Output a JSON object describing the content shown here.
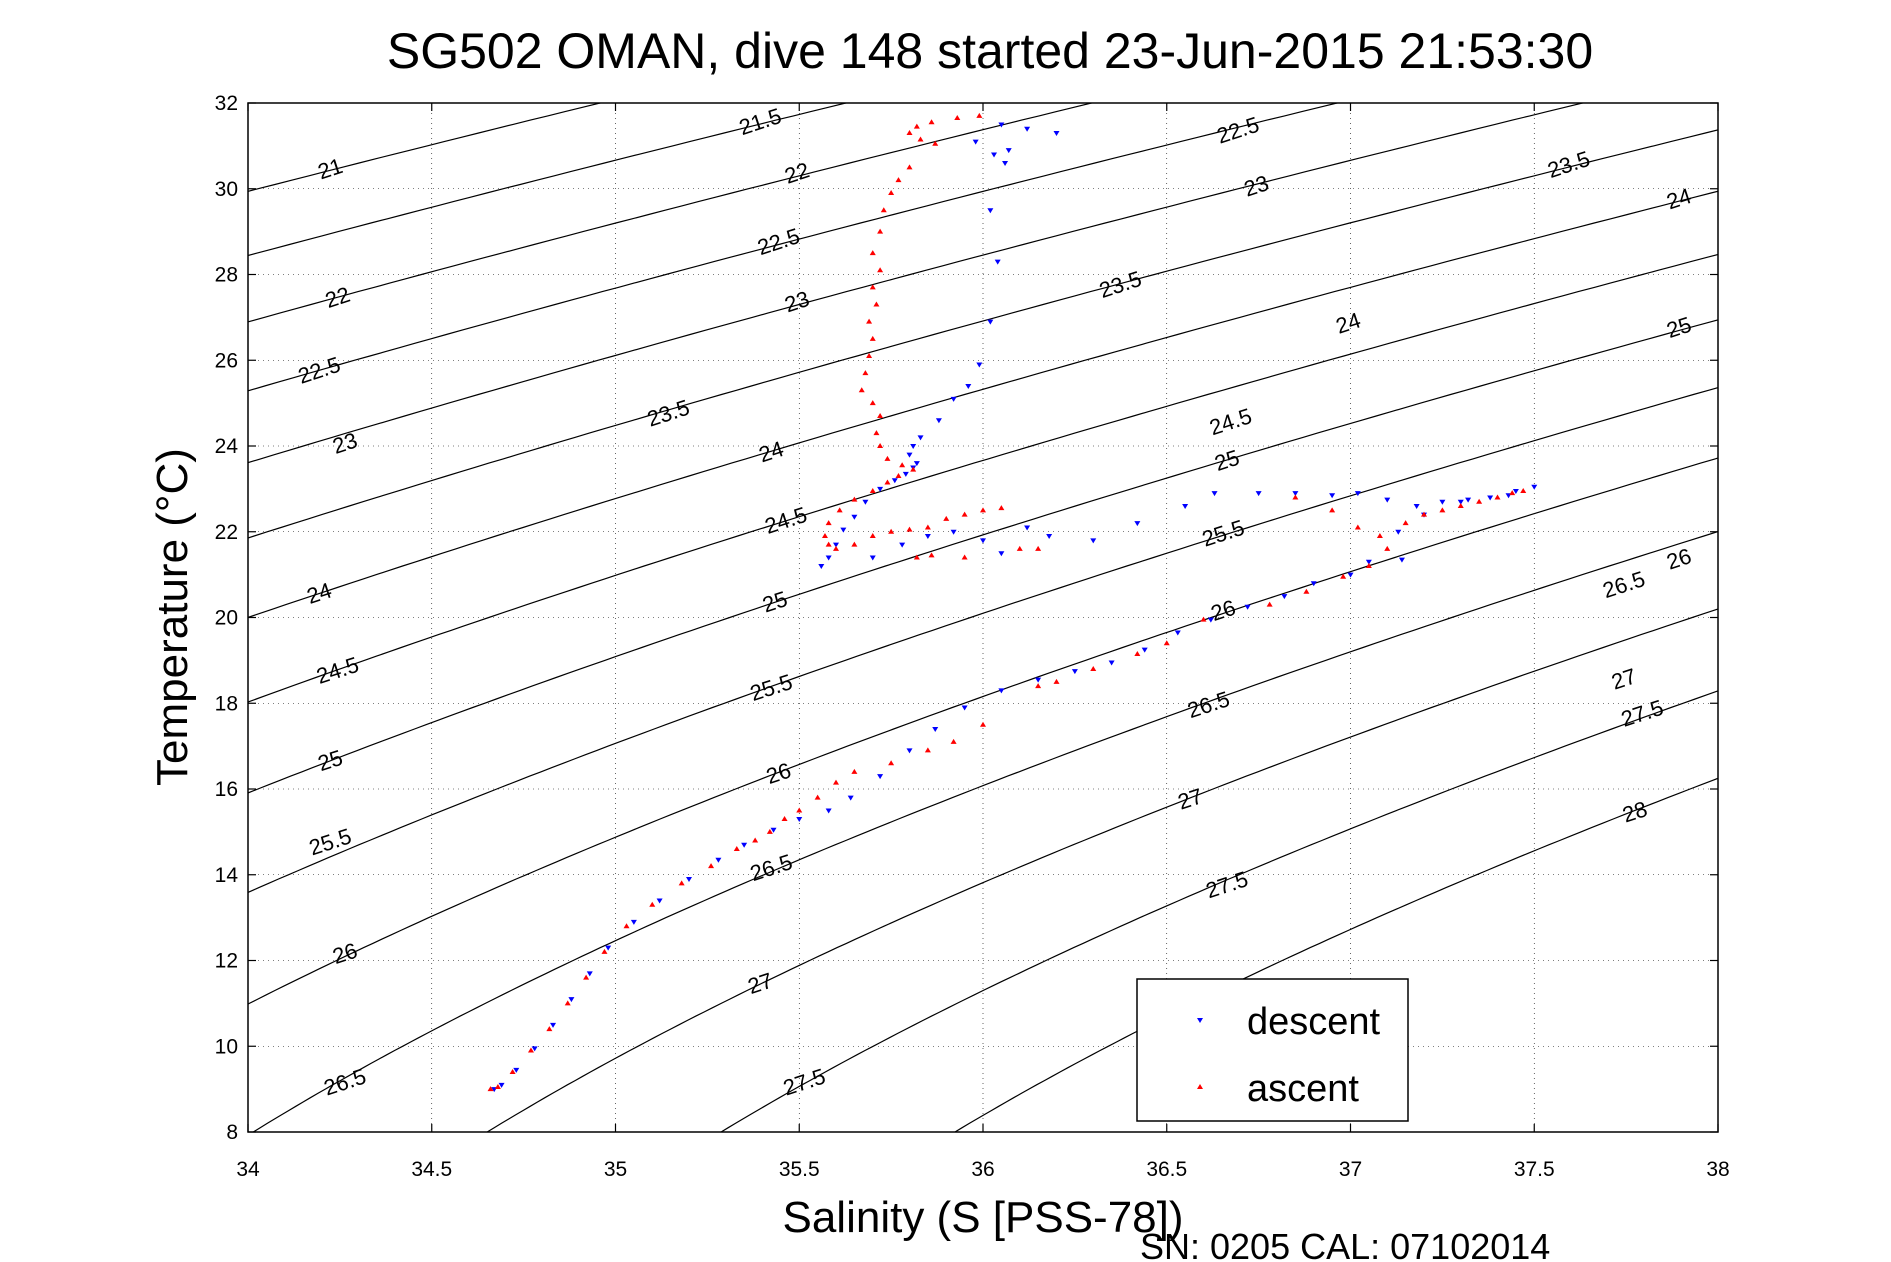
{
  "chart_data": {
    "type": "scatter",
    "title": "SG502 OMAN, dive 148 started 23-Jun-2015 21:53:30",
    "xlabel": "Salinity (S [PSS-78])",
    "ylabel": "Temperature (°C)",
    "xlim": [
      34,
      38
    ],
    "ylim": [
      8,
      32
    ],
    "x_ticks": [
      "34",
      "34.5",
      "35",
      "35.5",
      "36",
      "36.5",
      "37",
      "37.5",
      "38"
    ],
    "y_ticks": [
      "8",
      "10",
      "12",
      "14",
      "16",
      "18",
      "20",
      "22",
      "24",
      "26",
      "28",
      "30",
      "32"
    ],
    "grid": "dotted",
    "legend_position": "bottom-right",
    "density_contours": {
      "levels": [
        21,
        21.5,
        22,
        22.5,
        23,
        23.5,
        24,
        24.5,
        25,
        25.5,
        26,
        26.5,
        27,
        27.5,
        28
      ],
      "color": "#000000",
      "labels": [
        {
          "text": "21",
          "s": 34.23,
          "t": 30.3
        },
        {
          "text": "21.5",
          "s": 35.4,
          "t": 31.4
        },
        {
          "text": "22",
          "s": 35.5,
          "t": 30.2
        },
        {
          "text": "22.5",
          "s": 36.7,
          "t": 31.2
        },
        {
          "text": "22",
          "s": 34.25,
          "t": 27.3
        },
        {
          "text": "22.5",
          "s": 35.45,
          "t": 28.6
        },
        {
          "text": "23",
          "s": 36.75,
          "t": 29.9
        },
        {
          "text": "23.5",
          "s": 37.6,
          "t": 30.4
        },
        {
          "text": "24",
          "s": 37.9,
          "t": 29.6
        },
        {
          "text": "22.5",
          "s": 34.2,
          "t": 25.6
        },
        {
          "text": "23",
          "s": 35.5,
          "t": 27.2
        },
        {
          "text": "23.5",
          "s": 36.38,
          "t": 27.6
        },
        {
          "text": "24",
          "s": 37.0,
          "t": 26.7
        },
        {
          "text": "25",
          "s": 37.9,
          "t": 26.6
        },
        {
          "text": "23",
          "s": 34.27,
          "t": 23.9
        },
        {
          "text": "23.5",
          "s": 35.15,
          "t": 24.6
        },
        {
          "text": "24.5",
          "s": 36.68,
          "t": 24.4
        },
        {
          "text": "24",
          "s": 35.43,
          "t": 23.7
        },
        {
          "text": "25",
          "s": 36.67,
          "t": 23.5
        },
        {
          "text": "24.5",
          "s": 35.47,
          "t": 22.1
        },
        {
          "text": "25.5",
          "s": 36.66,
          "t": 21.8
        },
        {
          "text": "24",
          "s": 34.2,
          "t": 20.4
        },
        {
          "text": "25",
          "s": 35.44,
          "t": 20.2
        },
        {
          "text": "26",
          "s": 37.9,
          "t": 21.2
        },
        {
          "text": "26",
          "s": 36.66,
          "t": 20.0
        },
        {
          "text": "26.5",
          "s": 37.75,
          "t": 20.6
        },
        {
          "text": "24.5",
          "s": 34.25,
          "t": 18.6
        },
        {
          "text": "25.5",
          "s": 35.43,
          "t": 18.2
        },
        {
          "text": "26.5",
          "s": 36.62,
          "t": 17.8
        },
        {
          "text": "27",
          "s": 37.75,
          "t": 18.4
        },
        {
          "text": "27.5",
          "s": 37.8,
          "t": 17.6
        },
        {
          "text": "25",
          "s": 34.23,
          "t": 16.5
        },
        {
          "text": "26",
          "s": 35.45,
          "t": 16.2
        },
        {
          "text": "27",
          "s": 36.57,
          "t": 15.6
        },
        {
          "text": "28",
          "s": 37.78,
          "t": 15.3
        },
        {
          "text": "25.5",
          "s": 34.23,
          "t": 14.6
        },
        {
          "text": "26.5",
          "s": 35.43,
          "t": 14.0
        },
        {
          "text": "27.5",
          "s": 36.67,
          "t": 13.6
        },
        {
          "text": "26",
          "s": 34.27,
          "t": 12.0
        },
        {
          "text": "27",
          "s": 35.4,
          "t": 11.3
        },
        {
          "text": "26.5",
          "s": 34.27,
          "t": 9.0
        },
        {
          "text": "27.5",
          "s": 35.52,
          "t": 9.0
        }
      ]
    },
    "series": [
      {
        "name": "descent",
        "color": "#0000ff",
        "marker": "triangle-down",
        "points": [
          [
            36.05,
            31.5
          ],
          [
            36.12,
            31.4
          ],
          [
            36.2,
            31.3
          ],
          [
            35.98,
            31.1
          ],
          [
            36.07,
            30.9
          ],
          [
            36.03,
            30.8
          ],
          [
            36.06,
            30.6
          ],
          [
            36.02,
            29.5
          ],
          [
            36.04,
            28.3
          ],
          [
            36.02,
            26.9
          ],
          [
            35.99,
            25.9
          ],
          [
            35.96,
            25.4
          ],
          [
            35.92,
            25.1
          ],
          [
            35.88,
            24.6
          ],
          [
            35.83,
            24.2
          ],
          [
            35.81,
            24.0
          ],
          [
            35.8,
            23.8
          ],
          [
            35.82,
            23.6
          ],
          [
            35.81,
            23.5
          ],
          [
            35.79,
            23.35
          ],
          [
            35.76,
            23.2
          ],
          [
            35.72,
            23.0
          ],
          [
            35.68,
            22.7
          ],
          [
            35.65,
            22.35
          ],
          [
            35.62,
            22.05
          ],
          [
            35.6,
            21.7
          ],
          [
            35.58,
            21.4
          ],
          [
            35.56,
            21.2
          ],
          [
            35.7,
            21.4
          ],
          [
            35.78,
            21.7
          ],
          [
            35.85,
            21.9
          ],
          [
            35.92,
            22.0
          ],
          [
            36.0,
            21.8
          ],
          [
            36.05,
            21.5
          ],
          [
            36.12,
            22.1
          ],
          [
            36.18,
            21.9
          ],
          [
            36.3,
            21.8
          ],
          [
            36.42,
            22.2
          ],
          [
            36.55,
            22.6
          ],
          [
            36.63,
            22.9
          ],
          [
            36.75,
            22.9
          ],
          [
            36.85,
            22.9
          ],
          [
            36.95,
            22.85
          ],
          [
            37.02,
            22.9
          ],
          [
            37.1,
            22.75
          ],
          [
            37.18,
            22.6
          ],
          [
            37.25,
            22.7
          ],
          [
            37.32,
            22.75
          ],
          [
            37.38,
            22.8
          ],
          [
            37.45,
            22.95
          ],
          [
            37.5,
            23.05
          ],
          [
            37.43,
            22.85
          ],
          [
            37.3,
            22.7
          ],
          [
            37.2,
            22.4
          ],
          [
            37.13,
            22.0
          ],
          [
            37.14,
            21.35
          ],
          [
            37.05,
            21.3
          ],
          [
            37.0,
            21.0
          ],
          [
            36.9,
            20.8
          ],
          [
            36.82,
            20.5
          ],
          [
            36.72,
            20.25
          ],
          [
            36.62,
            19.95
          ],
          [
            36.53,
            19.65
          ],
          [
            36.44,
            19.25
          ],
          [
            36.35,
            18.95
          ],
          [
            36.25,
            18.75
          ],
          [
            36.15,
            18.55
          ],
          [
            36.05,
            18.3
          ],
          [
            35.95,
            17.9
          ],
          [
            35.87,
            17.4
          ],
          [
            35.8,
            16.9
          ],
          [
            35.72,
            16.3
          ],
          [
            35.64,
            15.8
          ],
          [
            35.58,
            15.5
          ],
          [
            35.5,
            15.3
          ],
          [
            35.43,
            15.05
          ],
          [
            35.35,
            14.7
          ],
          [
            35.28,
            14.35
          ],
          [
            35.2,
            13.9
          ],
          [
            35.12,
            13.4
          ],
          [
            35.05,
            12.9
          ],
          [
            34.98,
            12.3
          ],
          [
            34.93,
            11.7
          ],
          [
            34.88,
            11.1
          ],
          [
            34.83,
            10.5
          ],
          [
            34.78,
            9.95
          ],
          [
            34.73,
            9.45
          ],
          [
            34.69,
            9.1
          ],
          [
            34.67,
            9.0
          ]
        ]
      },
      {
        "name": "ascent",
        "color": "#ff0000",
        "marker": "triangle-up",
        "points": [
          [
            35.99,
            31.7
          ],
          [
            35.93,
            31.65
          ],
          [
            35.86,
            31.55
          ],
          [
            35.82,
            31.45
          ],
          [
            35.8,
            31.3
          ],
          [
            35.83,
            31.15
          ],
          [
            35.87,
            31.05
          ],
          [
            35.8,
            30.5
          ],
          [
            35.77,
            30.2
          ],
          [
            35.75,
            29.9
          ],
          [
            35.73,
            29.5
          ],
          [
            35.72,
            29.0
          ],
          [
            35.7,
            28.5
          ],
          [
            35.72,
            28.1
          ],
          [
            35.7,
            27.7
          ],
          [
            35.71,
            27.3
          ],
          [
            35.69,
            26.9
          ],
          [
            35.7,
            26.5
          ],
          [
            35.69,
            26.1
          ],
          [
            35.68,
            25.7
          ],
          [
            35.67,
            25.3
          ],
          [
            35.7,
            25.0
          ],
          [
            35.72,
            24.7
          ],
          [
            35.71,
            24.3
          ],
          [
            35.72,
            24.0
          ],
          [
            35.74,
            23.7
          ],
          [
            35.78,
            23.55
          ],
          [
            35.81,
            23.45
          ],
          [
            35.77,
            23.3
          ],
          [
            35.74,
            23.15
          ],
          [
            35.7,
            22.95
          ],
          [
            35.65,
            22.75
          ],
          [
            35.61,
            22.5
          ],
          [
            35.58,
            22.2
          ],
          [
            35.57,
            21.9
          ],
          [
            35.58,
            21.7
          ],
          [
            35.6,
            21.6
          ],
          [
            35.65,
            21.7
          ],
          [
            35.7,
            21.9
          ],
          [
            35.75,
            22.0
          ],
          [
            35.8,
            22.05
          ],
          [
            35.85,
            22.1
          ],
          [
            35.9,
            22.3
          ],
          [
            35.95,
            22.4
          ],
          [
            36.0,
            22.5
          ],
          [
            36.05,
            22.55
          ],
          [
            35.82,
            21.4
          ],
          [
            35.86,
            21.45
          ],
          [
            35.95,
            21.4
          ],
          [
            36.1,
            21.6
          ],
          [
            36.15,
            21.6
          ],
          [
            36.85,
            22.8
          ],
          [
            36.95,
            22.5
          ],
          [
            37.02,
            22.1
          ],
          [
            37.08,
            21.9
          ],
          [
            37.15,
            22.2
          ],
          [
            37.2,
            22.4
          ],
          [
            37.25,
            22.5
          ],
          [
            37.3,
            22.6
          ],
          [
            37.35,
            22.7
          ],
          [
            37.4,
            22.8
          ],
          [
            37.44,
            22.9
          ],
          [
            37.47,
            22.95
          ],
          [
            37.1,
            21.6
          ],
          [
            37.05,
            21.2
          ],
          [
            36.98,
            20.95
          ],
          [
            36.88,
            20.6
          ],
          [
            36.78,
            20.3
          ],
          [
            36.6,
            19.95
          ],
          [
            36.5,
            19.4
          ],
          [
            36.42,
            19.15
          ],
          [
            36.3,
            18.8
          ],
          [
            36.2,
            18.5
          ],
          [
            36.15,
            18.4
          ],
          [
            36.0,
            17.5
          ],
          [
            35.92,
            17.1
          ],
          [
            35.85,
            16.9
          ],
          [
            35.75,
            16.6
          ],
          [
            35.65,
            16.4
          ],
          [
            35.6,
            16.15
          ],
          [
            35.55,
            15.8
          ],
          [
            35.5,
            15.5
          ],
          [
            35.46,
            15.3
          ],
          [
            35.42,
            15.0
          ],
          [
            35.38,
            14.8
          ],
          [
            35.33,
            14.6
          ],
          [
            35.26,
            14.2
          ],
          [
            35.18,
            13.8
          ],
          [
            35.1,
            13.3
          ],
          [
            35.03,
            12.8
          ],
          [
            34.97,
            12.2
          ],
          [
            34.92,
            11.6
          ],
          [
            34.87,
            11.0
          ],
          [
            34.82,
            10.4
          ],
          [
            34.77,
            9.9
          ],
          [
            34.72,
            9.4
          ],
          [
            34.68,
            9.05
          ],
          [
            34.66,
            9.0
          ]
        ]
      }
    ]
  },
  "legend": {
    "descent_label": "descent",
    "ascent_label": "ascent"
  },
  "footer": {
    "serial_text": "SN: 0205  CAL: 07102014"
  }
}
